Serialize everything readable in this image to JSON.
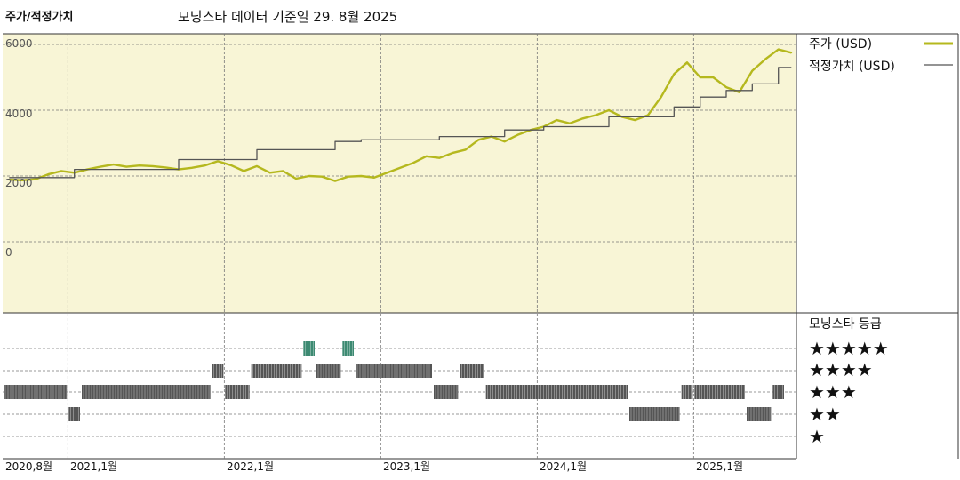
{
  "header": {
    "title": "주가/적정가치",
    "date_label": "모닝스타 데이터 기준일 29. 8월 2025"
  },
  "legend": {
    "price_label": "주가 (USD)",
    "fair_value_label": "적정가치 (USD)"
  },
  "rating_panel": {
    "title": "모닝스타 등급",
    "levels": [
      "★★★★★",
      "★★★★",
      "★★★",
      "★★",
      "★"
    ]
  },
  "colors": {
    "price": "#b5b81e",
    "fair_value": "#555555",
    "plot_bg": "#f8f5d6",
    "rating_bar": "#555555",
    "rating_5": "#3d8a72"
  },
  "chart_data": {
    "type": "line",
    "x_ticks": [
      "2020,8월",
      "2021,1월",
      "2022,1월",
      "2023,1월",
      "2024,1월",
      "2025,1월"
    ],
    "y_ticks": [
      "6000",
      "4000",
      "2000",
      "0"
    ],
    "ylim": [
      0,
      6000
    ],
    "xlim": [
      "2020-08",
      "2025-08"
    ],
    "grid": true,
    "legend_position": "right",
    "series": [
      {
        "name": "주가 (USD)",
        "points": [
          [
            "2020-08",
            1890
          ],
          [
            "2020-09",
            1870
          ],
          [
            "2020-10",
            1900
          ],
          [
            "2020-11",
            2050
          ],
          [
            "2020-12",
            2150
          ],
          [
            "2021-01",
            2100
          ],
          [
            "2021-02",
            2200
          ],
          [
            "2021-03",
            2280
          ],
          [
            "2021-04",
            2350
          ],
          [
            "2021-05",
            2280
          ],
          [
            "2021-06",
            2320
          ],
          [
            "2021-07",
            2300
          ],
          [
            "2021-08",
            2260
          ],
          [
            "2021-09",
            2200
          ],
          [
            "2021-10",
            2250
          ],
          [
            "2021-11",
            2320
          ],
          [
            "2021-12",
            2450
          ],
          [
            "2022-01",
            2330
          ],
          [
            "2022-02",
            2150
          ],
          [
            "2022-03",
            2300
          ],
          [
            "2022-04",
            2100
          ],
          [
            "2022-05",
            2150
          ],
          [
            "2022-06",
            1920
          ],
          [
            "2022-07",
            2000
          ],
          [
            "2022-08",
            1980
          ],
          [
            "2022-09",
            1850
          ],
          [
            "2022-10",
            1980
          ],
          [
            "2022-11",
            2000
          ],
          [
            "2022-12",
            1950
          ],
          [
            "2023-01",
            2100
          ],
          [
            "2023-02",
            2250
          ],
          [
            "2023-03",
            2400
          ],
          [
            "2023-04",
            2600
          ],
          [
            "2023-05",
            2550
          ],
          [
            "2023-06",
            2700
          ],
          [
            "2023-07",
            2800
          ],
          [
            "2023-08",
            3100
          ],
          [
            "2023-09",
            3200
          ],
          [
            "2023-10",
            3050
          ],
          [
            "2023-11",
            3250
          ],
          [
            "2023-12",
            3400
          ],
          [
            "2024-01",
            3500
          ],
          [
            "2024-02",
            3700
          ],
          [
            "2024-03",
            3600
          ],
          [
            "2024-04",
            3750
          ],
          [
            "2024-05",
            3850
          ],
          [
            "2024-06",
            4000
          ],
          [
            "2024-07",
            3800
          ],
          [
            "2024-08",
            3700
          ],
          [
            "2024-09",
            3850
          ],
          [
            "2024-10",
            4400
          ],
          [
            "2024-11",
            5100
          ],
          [
            "2024-12",
            5450
          ],
          [
            "2025-01",
            5000
          ],
          [
            "2025-02",
            5000
          ],
          [
            "2025-03",
            4700
          ],
          [
            "2025-04",
            4550
          ],
          [
            "2025-05",
            5200
          ],
          [
            "2025-06",
            5550
          ],
          [
            "2025-07",
            5850
          ],
          [
            "2025-08",
            5750
          ]
        ]
      },
      {
        "name": "적정가치 (USD)",
        "points": [
          [
            "2020-08",
            1950
          ],
          [
            "2021-01",
            1950
          ],
          [
            "2021-01",
            2200
          ],
          [
            "2021-09",
            2200
          ],
          [
            "2021-09",
            2500
          ],
          [
            "2022-03",
            2500
          ],
          [
            "2022-03",
            2800
          ],
          [
            "2022-09",
            2800
          ],
          [
            "2022-09",
            3050
          ],
          [
            "2022-11",
            3050
          ],
          [
            "2022-11",
            3100
          ],
          [
            "2023-05",
            3100
          ],
          [
            "2023-05",
            3200
          ],
          [
            "2023-10",
            3200
          ],
          [
            "2023-10",
            3400
          ],
          [
            "2024-01",
            3400
          ],
          [
            "2024-01",
            3500
          ],
          [
            "2024-06",
            3500
          ],
          [
            "2024-06",
            3800
          ],
          [
            "2024-11",
            3800
          ],
          [
            "2024-11",
            4100
          ],
          [
            "2025-01",
            4100
          ],
          [
            "2025-01",
            4400
          ],
          [
            "2025-03",
            4400
          ],
          [
            "2025-03",
            4600
          ],
          [
            "2025-05",
            4600
          ],
          [
            "2025-05",
            4800
          ],
          [
            "2025-07",
            4800
          ],
          [
            "2025-07",
            5300
          ],
          [
            "2025-08",
            5300
          ]
        ]
      }
    ],
    "rating_history": [
      {
        "start": "2020-08",
        "end": "2021-01",
        "stars": 3
      },
      {
        "start": "2021-01",
        "end": "2021-02",
        "stars": 2
      },
      {
        "start": "2021-02",
        "end": "2021-12",
        "stars": 3
      },
      {
        "start": "2021-12",
        "end": "2022-01",
        "stars": 4
      },
      {
        "start": "2022-01",
        "end": "2022-03",
        "stars": 3
      },
      {
        "start": "2022-03",
        "end": "2022-07",
        "stars": 4
      },
      {
        "start": "2022-07",
        "end": "2022-08",
        "stars": 5
      },
      {
        "start": "2022-08",
        "end": "2022-10",
        "stars": 4
      },
      {
        "start": "2022-10",
        "end": "2022-11",
        "stars": 5
      },
      {
        "start": "2022-11",
        "end": "2023-05",
        "stars": 4
      },
      {
        "start": "2023-05",
        "end": "2023-07",
        "stars": 3
      },
      {
        "start": "2023-07",
        "end": "2023-09",
        "stars": 4
      },
      {
        "start": "2023-09",
        "end": "2024-08",
        "stars": 3
      },
      {
        "start": "2024-08",
        "end": "2024-12",
        "stars": 2
      },
      {
        "start": "2024-12",
        "end": "2025-01",
        "stars": 3
      },
      {
        "start": "2025-01",
        "end": "2025-05",
        "stars": 3
      },
      {
        "start": "2025-05",
        "end": "2025-07",
        "stars": 2
      },
      {
        "start": "2025-07",
        "end": "2025-08",
        "stars": 3
      }
    ]
  }
}
